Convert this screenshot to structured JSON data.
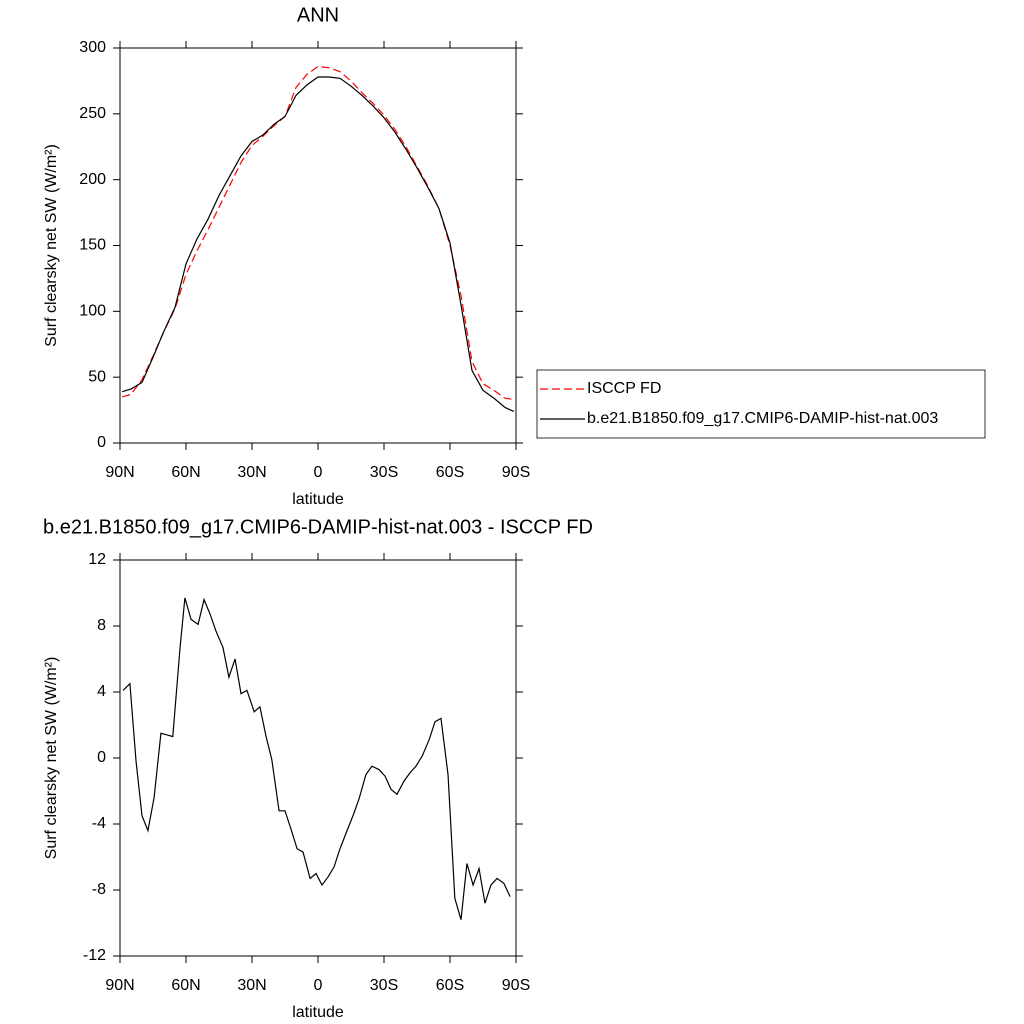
{
  "chart_data": [
    {
      "type": "line",
      "title": "ANN",
      "xlabel": "latitude",
      "ylabel": "Surf clearsky net SW (W/m²)",
      "x": [
        89,
        85,
        80,
        75,
        70,
        65,
        60,
        55,
        50,
        45,
        40,
        35,
        30,
        25,
        20,
        15,
        10,
        5,
        0,
        -5,
        -10,
        -15,
        -20,
        -25,
        -30,
        -35,
        -40,
        -45,
        -50,
        -55,
        -60,
        -65,
        -70,
        -75,
        -80,
        -85,
        -89
      ],
      "series": [
        {
          "name": "ISCCP FD",
          "color": "#ff0000",
          "linestyle": "dashed",
          "values": [
            35,
            37,
            48,
            66,
            85,
            102,
            128,
            146,
            162,
            179,
            196,
            213,
            226,
            233,
            241,
            248,
            270,
            280,
            286,
            285,
            282,
            275,
            266,
            258,
            249,
            238,
            225,
            210,
            195,
            178,
            150,
            112,
            62,
            45,
            40,
            34,
            33
          ]
        },
        {
          "name": "b.e21.B1850.f09_g17.CMIP6-DAMIP-hist-nat.003",
          "color": "#000000",
          "linestyle": "solid",
          "values": [
            39,
            41,
            46,
            65,
            85,
            103,
            136,
            155,
            170,
            188,
            203,
            218,
            229,
            234,
            242,
            248,
            264,
            272,
            278,
            278,
            277,
            271,
            264,
            256,
            247,
            236,
            223,
            209,
            194,
            178,
            152,
            105,
            55,
            40,
            34,
            27,
            24
          ]
        }
      ],
      "xlim": [
        90,
        -90
      ],
      "xticks": [
        {
          "value": 90,
          "label": "90N"
        },
        {
          "value": 60,
          "label": "60N"
        },
        {
          "value": 30,
          "label": "30N"
        },
        0,
        {
          "value": -30,
          "label": "30S"
        },
        {
          "value": -60,
          "label": "60S"
        },
        {
          "value": -90,
          "label": "90S"
        }
      ],
      "ylim": [
        0,
        300
      ],
      "yticks": [
        0,
        50,
        100,
        150,
        200,
        250,
        300
      ],
      "legend": "right"
    },
    {
      "type": "line",
      "title": "b.e21.B1850.f09_g17.CMIP6-DAMIP-hist-nat.003 - ISCCP FD",
      "xlabel": "latitude",
      "ylabel": "Surf clearsky net SW (W/m²)",
      "x": [
        88.6,
        85.5,
        82.7,
        80,
        77.3,
        74.5,
        71.4,
        68.6,
        66,
        62.7,
        60.5,
        57.7,
        54.5,
        51.8,
        49,
        46.4,
        43.2,
        40.5,
        37.7,
        35,
        32.3,
        29,
        26.4,
        23.6,
        21,
        17.7,
        15,
        12.3,
        9.5,
        6.8,
        3.6,
        0.9,
        -1.8,
        -4.6,
        -7.3,
        -10,
        -13.2,
        -15.9,
        -18.6,
        -21.8,
        -24.5,
        -27.7,
        -30.5,
        -33.2,
        -35.9,
        -39.1,
        -41.8,
        -44.5,
        -47.3,
        -50.5,
        -53.2,
        -55.9,
        -59.1,
        -62.2,
        -65,
        -67.7,
        -70.5,
        -73.2,
        -75.9,
        -78.6,
        -81.4,
        -84.5,
        -87.3
      ],
      "series": [
        {
          "color": "#000000",
          "linestyle": "solid",
          "values": [
            4.1,
            4.5,
            -0.2,
            -3.5,
            -4.4,
            -2.4,
            1.5,
            1.4,
            1.3,
            6.7,
            9.7,
            8.4,
            8.1,
            9.6,
            8.7,
            7.7,
            6.7,
            4.9,
            6,
            3.9,
            4.1,
            2.8,
            3.1,
            1.3,
            -0.1,
            -3.2,
            -3.2,
            -4.3,
            -5.5,
            -5.7,
            -7.3,
            -7,
            -7.7,
            -7.2,
            -6.6,
            -5.5,
            -4.4,
            -3.5,
            -2.5,
            -1,
            -0.5,
            -0.7,
            -1.1,
            -1.9,
            -2.2,
            -1.4,
            -0.9,
            -0.5,
            0.1,
            1.1,
            2.2,
            2.4,
            -1,
            -8.5,
            -9.8,
            -6.4,
            -7.7,
            -6.7,
            -8.8,
            -7.7,
            -7.3,
            -7.6,
            -8.4
          ]
        }
      ],
      "xlim": [
        90,
        -90
      ],
      "xticks": [
        {
          "value": 90,
          "label": "90N"
        },
        {
          "value": 60,
          "label": "60N"
        },
        {
          "value": 30,
          "label": "30N"
        },
        0,
        {
          "value": -30,
          "label": "30S"
        },
        {
          "value": -60,
          "label": "60S"
        },
        {
          "value": -90,
          "label": "90S"
        }
      ],
      "ylim": [
        -12,
        12
      ],
      "yticks": [
        -12,
        -8,
        -4,
        0,
        4,
        8,
        12
      ]
    }
  ]
}
